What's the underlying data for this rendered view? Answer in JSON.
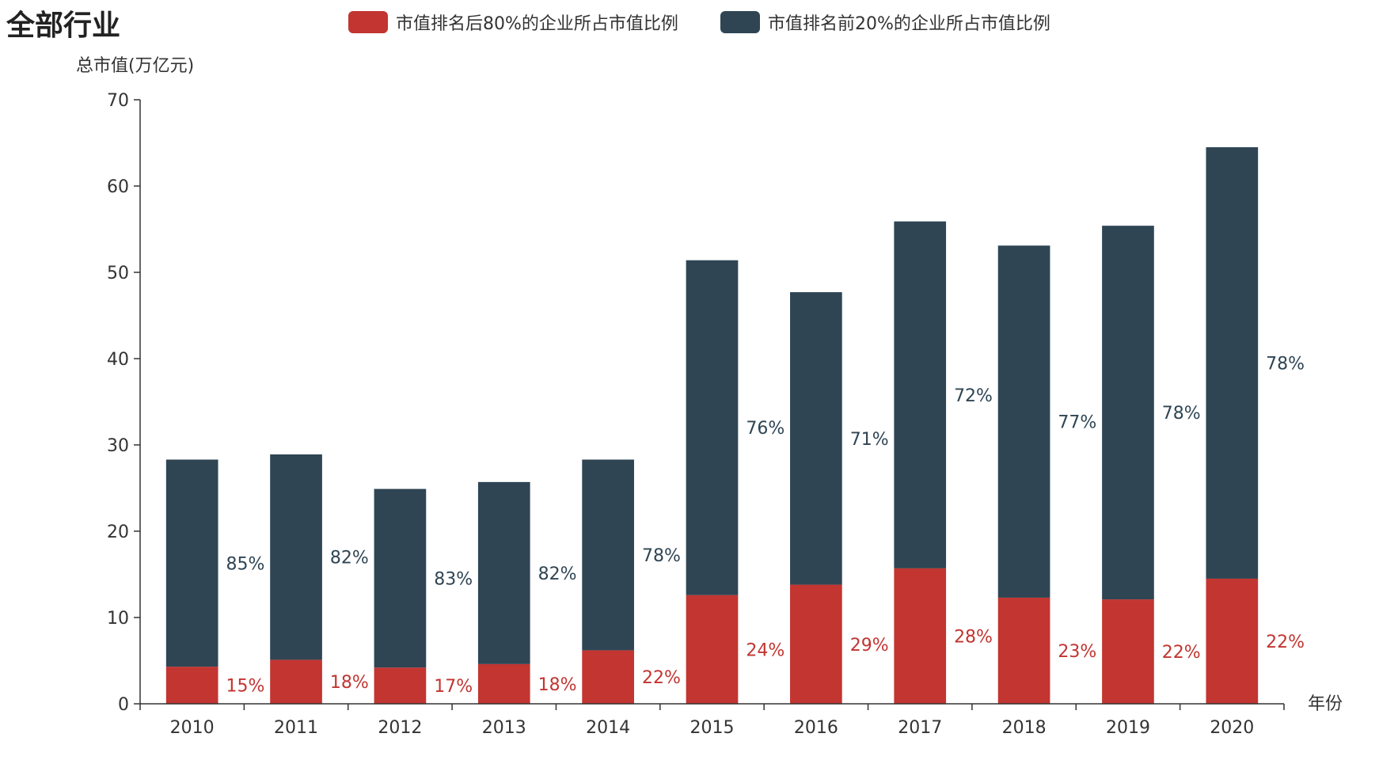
{
  "chart_data": {
    "type": "bar",
    "stacked": true,
    "title": "全部行业",
    "xlabel": "年份",
    "ylabel": "总市值(万亿元)",
    "ylim": [
      0,
      70
    ],
    "yticks": [
      0,
      10,
      20,
      30,
      40,
      50,
      60,
      70
    ],
    "grid": false,
    "legend_position": "top",
    "categories": [
      "2010",
      "2011",
      "2012",
      "2013",
      "2014",
      "2015",
      "2016",
      "2017",
      "2018",
      "2019",
      "2020"
    ],
    "series": [
      {
        "name": "市值排名后80%的企业所占市值比例",
        "color": "#c23531",
        "values": [
          4.3,
          5.1,
          4.2,
          4.6,
          6.2,
          12.6,
          13.8,
          15.7,
          12.3,
          12.1,
          14.5
        ],
        "labels": [
          "15%",
          "18%",
          "17%",
          "18%",
          "22%",
          "24%",
          "29%",
          "28%",
          "23%",
          "22%",
          "22%"
        ]
      },
      {
        "name": "市值排名前20%的企业所占市值比例",
        "color": "#2f4554",
        "values": [
          24.0,
          23.8,
          20.7,
          21.1,
          22.1,
          38.8,
          33.9,
          40.2,
          40.8,
          43.3,
          50.0
        ],
        "labels": [
          "85%",
          "82%",
          "83%",
          "82%",
          "78%",
          "76%",
          "71%",
          "72%",
          "77%",
          "78%",
          "78%"
        ]
      }
    ]
  }
}
